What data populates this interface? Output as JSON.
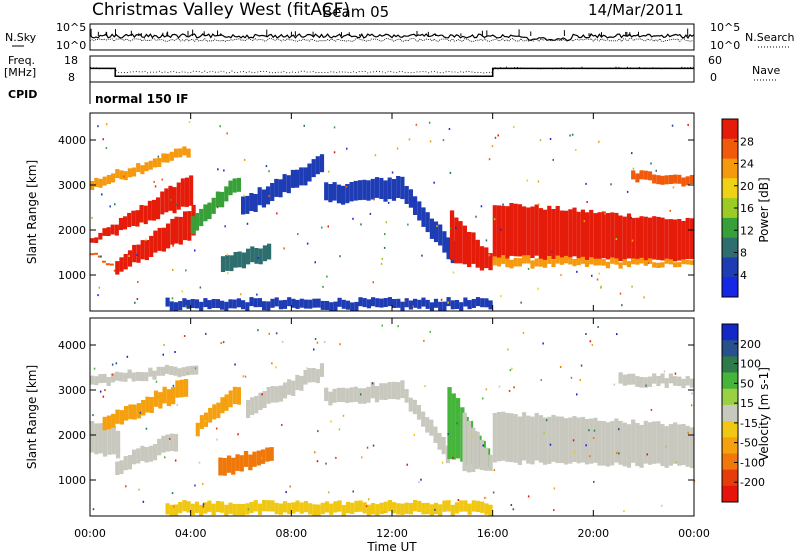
{
  "header": {
    "title": "Christmas Valley West (fitACF)",
    "beam": "Beam 05",
    "date": "14/Mar/2011"
  },
  "summary": {
    "nsky_label": "N.Sky",
    "nsearch_label": "N.Search",
    "freq_label_1": "Freq.",
    "freq_label_2": "[MHz]",
    "nave_label": "Nave",
    "cpid_label": "CPID",
    "noise_ticks": [
      "10^5",
      "10^0"
    ],
    "freq_ticks": [
      "18",
      "8"
    ],
    "nave_ticks": [
      "60",
      "0"
    ],
    "cpid_value": "normal 150 IF",
    "freq_steps": [
      {
        "from_ut": 0,
        "to_ut": 1.0,
        "mhz": 14.2
      },
      {
        "from_ut": 1.0,
        "to_ut": 16.0,
        "mhz": 10.6
      },
      {
        "from_ut": 16.0,
        "to_ut": 24.0,
        "mhz": 14.2
      }
    ]
  },
  "chart_data": [
    {
      "type": "heatmap",
      "panel": "power",
      "ylabel": "Slant Range [km]",
      "xlabel": "Time UT",
      "x_ticks": [
        "00:00",
        "04:00",
        "08:00",
        "12:00",
        "16:00",
        "20:00",
        "00:00"
      ],
      "y_ticks": [
        "1000",
        "2000",
        "3000",
        "4000"
      ],
      "xlim": [
        0,
        24
      ],
      "ylim": [
        200,
        4600
      ],
      "colorbar_label": "Power [dB]",
      "colorbar_ticks": [
        "4",
        "8",
        "12",
        "16",
        "20",
        "24",
        "28"
      ],
      "colorbar_colors": [
        "#1428e6",
        "#1e3cb4",
        "#2e6e6e",
        "#38a038",
        "#9ccc24",
        "#f0d214",
        "#f59a0f",
        "#f05a0a",
        "#e61c0a"
      ],
      "regions": [
        {
          "t0": 0.0,
          "t1": 4.1,
          "r0": [
            1700,
            1800
          ],
          "r1": [
            2600,
            3300
          ],
          "color": "#e61c0a"
        },
        {
          "t0": 0.0,
          "t1": 1.1,
          "r0": [
            1500,
            1500
          ],
          "r1": [
            1100,
            1100
          ],
          "color": "#f05a0a"
        },
        {
          "t0": 1.0,
          "t1": 4.2,
          "r0": [
            1050,
            1350
          ],
          "r1": [
            1900,
            2600
          ],
          "color": "#e61c0a"
        },
        {
          "t0": 0.0,
          "t1": 4.0,
          "r0": [
            2900,
            3100
          ],
          "r1": [
            3700,
            3900
          ],
          "color": "#f59a0f"
        },
        {
          "t0": 4.0,
          "t1": 6.0,
          "r0": [
            1900,
            2300
          ],
          "r1": [
            3000,
            3300
          ],
          "color": "#38a038"
        },
        {
          "t0": 5.2,
          "t1": 7.2,
          "r0": [
            1050,
            1400
          ],
          "r1": [
            1350,
            1700
          ],
          "color": "#2e6e6e"
        },
        {
          "t0": 6.0,
          "t1": 9.3,
          "r0": [
            2300,
            2700
          ],
          "r1": [
            3300,
            3700
          ],
          "color": "#1e3cb4"
        },
        {
          "t0": 9.3,
          "t1": 12.5,
          "r0": [
            2600,
            3000
          ],
          "r1": [
            2700,
            3200
          ],
          "color": "#1e3cb4"
        },
        {
          "t0": 12.5,
          "t1": 14.5,
          "r0": [
            2600,
            3000
          ],
          "r1": [
            1100,
            1600
          ],
          "color": "#1e3cb4"
        },
        {
          "t0": 14.3,
          "t1": 16.0,
          "r0": [
            1300,
            2400
          ],
          "r1": [
            1100,
            1400
          ],
          "color": "#e61c0a"
        },
        {
          "t0": 16.0,
          "t1": 24.0,
          "r0": [
            1400,
            2600
          ],
          "r1": [
            1300,
            2200
          ],
          "color": "#e61c0a"
        },
        {
          "t0": 16.0,
          "t1": 24.0,
          "r0": [
            1200,
            1400
          ],
          "r1": [
            1200,
            1300
          ],
          "color": "#f59a0f"
        },
        {
          "t0": 21.5,
          "t1": 24.0,
          "r0": [
            3100,
            3300
          ],
          "r1": [
            3000,
            3200
          ],
          "color": "#f05a0a"
        },
        {
          "t0": 3.0,
          "t1": 16.0,
          "r0": [
            250,
            450
          ],
          "r1": [
            250,
            450
          ],
          "color": "#1e3cb4"
        }
      ]
    },
    {
      "type": "heatmap",
      "panel": "velocity",
      "ylabel": "Slant Range [km]",
      "xlabel": "Time UT",
      "x_ticks": [
        "00:00",
        "04:00",
        "08:00",
        "12:00",
        "16:00",
        "20:00",
        "00:00"
      ],
      "y_ticks": [
        "1000",
        "2000",
        "3000",
        "4000"
      ],
      "xlim": [
        0,
        24
      ],
      "ylim": [
        200,
        4600
      ],
      "colorbar_label": "Velocity [m s-1]",
      "colorbar_ticks": [
        "200",
        "100",
        "50",
        "15",
        "-15",
        "-50",
        "-100",
        "-200"
      ],
      "colorbar_colors": [
        "#1428c8",
        "#28508c",
        "#2e7a4a",
        "#44b43a",
        "#9ad044",
        "#c8c8be",
        "#f0c814",
        "#f5a00f",
        "#f0780a",
        "#e63c0a",
        "#e6140a"
      ],
      "regions": [
        {
          "t0": 0.0,
          "t1": 1.2,
          "r0": [
            1600,
            2300
          ],
          "r1": [
            1500,
            2100
          ],
          "color": "#c8c8be"
        },
        {
          "t0": 1.0,
          "t1": 3.5,
          "r0": [
            1150,
            1450
          ],
          "r1": [
            1700,
            2100
          ],
          "color": "#c8c8be"
        },
        {
          "t0": 0.0,
          "t1": 4.3,
          "r0": [
            3100,
            3300
          ],
          "r1": [
            3400,
            3600
          ],
          "color": "#c8c8be"
        },
        {
          "t0": 0.5,
          "t1": 3.9,
          "r0": [
            2100,
            2400
          ],
          "r1": [
            2900,
            3300
          ],
          "color": "#f5a00f"
        },
        {
          "t0": 4.2,
          "t1": 6.0,
          "r0": [
            2000,
            2300
          ],
          "r1": [
            2800,
            3200
          ],
          "color": "#f5a00f"
        },
        {
          "t0": 5.1,
          "t1": 7.3,
          "r0": [
            1100,
            1500
          ],
          "r1": [
            1400,
            1700
          ],
          "color": "#f0780a"
        },
        {
          "t0": 6.2,
          "t1": 9.3,
          "r0": [
            2400,
            2800
          ],
          "r1": [
            3300,
            3600
          ],
          "color": "#c8c8be"
        },
        {
          "t0": 9.3,
          "t1": 12.5,
          "r0": [
            2700,
            3000
          ],
          "r1": [
            2800,
            3200
          ],
          "color": "#c8c8be"
        },
        {
          "t0": 12.5,
          "t1": 14.3,
          "r0": [
            2700,
            3000
          ],
          "r1": [
            1300,
            1700
          ],
          "color": "#c8c8be"
        },
        {
          "t0": 14.2,
          "t1": 15.9,
          "r0": [
            1500,
            3100
          ],
          "r1": [
            1200,
            1500
          ],
          "color": "#44b43a"
        },
        {
          "t0": 14.8,
          "t1": 16.0,
          "r0": [
            1200,
            2500
          ],
          "r1": [
            1200,
            1400
          ],
          "color": "#c8c8be"
        },
        {
          "t0": 16.0,
          "t1": 24.0,
          "r0": [
            1400,
            2500
          ],
          "r1": [
            1300,
            2200
          ],
          "color": "#c8c8be"
        },
        {
          "t0": 21.0,
          "t1": 24.0,
          "r0": [
            3100,
            3350
          ],
          "r1": [
            3100,
            3300
          ],
          "color": "#c8c8be"
        },
        {
          "t0": 3.0,
          "t1": 16.0,
          "r0": [
            250,
            500
          ],
          "r1": [
            250,
            500
          ],
          "color": "#f0c814"
        }
      ]
    }
  ]
}
